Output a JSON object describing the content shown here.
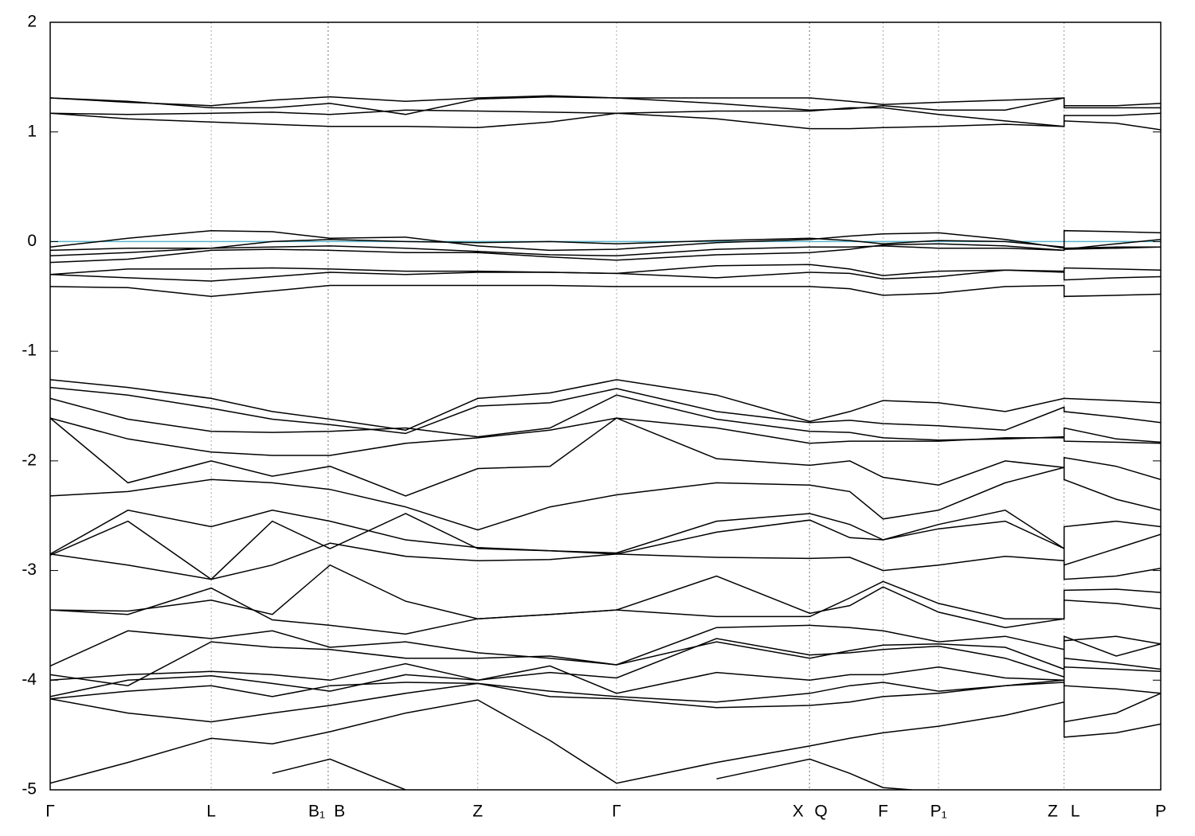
{
  "chart_data": {
    "type": "line",
    "x": [
      0,
      0.07,
      0.145,
      0.2,
      0.252,
      0.32,
      0.385,
      0.45,
      0.51,
      0.6,
      0.684,
      0.72,
      0.75,
      0.8,
      0.86,
      0.913,
      0.913,
      0.96,
      1.0
    ],
    "xlim": [
      0,
      1.0
    ],
    "xticks": [
      {
        "value": 0,
        "label": "Γ"
      },
      {
        "value": 0.145,
        "label": "L"
      },
      {
        "value": 0.25,
        "label": "B₁"
      },
      {
        "value": 0.2505,
        "label": "B"
      },
      {
        "value": 0.385,
        "label": "Z"
      },
      {
        "value": 0.51,
        "label": "Γ"
      },
      {
        "value": 0.6835,
        "label": "X"
      },
      {
        "value": 0.684,
        "label": "Q"
      },
      {
        "value": 0.75,
        "label": "F"
      },
      {
        "value": 0.8,
        "label": "P₁"
      },
      {
        "value": 0.9128,
        "label": "Z"
      },
      {
        "value": 0.913,
        "label": "L"
      },
      {
        "value": 1.0,
        "label": "P"
      }
    ],
    "ylim": [
      -5,
      2
    ],
    "yticks": [
      -5,
      -4,
      -3,
      -2,
      -1,
      0,
      1,
      2
    ],
    "grid": true,
    "line_color": "#000000",
    "fermi_level": 0,
    "fermi_color": "#5ab4c8",
    "series": [
      {
        "values": [
          1.31,
          1.27,
          1.24,
          1.29,
          1.32,
          1.28,
          1.31,
          1.33,
          1.31,
          1.31,
          1.31,
          1.28,
          1.25,
          1.27,
          1.29,
          1.31,
          1.24,
          1.24,
          1.26
        ]
      },
      {
        "values": [
          1.31,
          1.28,
          1.22,
          1.22,
          1.26,
          1.16,
          1.3,
          1.32,
          1.31,
          1.26,
          1.2,
          1.21,
          1.24,
          1.2,
          1.2,
          1.31,
          1.22,
          1.22,
          1.22
        ]
      },
      {
        "values": [
          1.17,
          1.16,
          1.17,
          1.18,
          1.16,
          1.2,
          1.19,
          1.18,
          1.17,
          1.19,
          1.19,
          1.22,
          1.22,
          1.16,
          1.1,
          1.05,
          1.15,
          1.15,
          1.17
        ]
      },
      {
        "values": [
          1.17,
          1.12,
          1.09,
          1.07,
          1.05,
          1.05,
          1.04,
          1.09,
          1.17,
          1.12,
          1.03,
          1.03,
          1.04,
          1.05,
          1.07,
          1.05,
          1.1,
          1.08,
          1.02
        ]
      },
      {
        "values": [
          -0.05,
          0.03,
          0.1,
          0.09,
          0.03,
          0.04,
          -0.04,
          -0.08,
          -0.07,
          -0.01,
          0.02,
          0.05,
          0.07,
          0.08,
          0.02,
          -0.06,
          0.1,
          0.09,
          0.08
        ]
      },
      {
        "values": [
          -0.08,
          -0.06,
          -0.06,
          0.0,
          0.02,
          0.0,
          -0.01,
          0.0,
          -0.02,
          0.01,
          0.03,
          0.01,
          -0.02,
          0.01,
          0.0,
          -0.05,
          -0.07,
          -0.02,
          0.02
        ]
      },
      {
        "values": [
          -0.13,
          -0.1,
          -0.06,
          -0.05,
          -0.04,
          -0.06,
          -0.09,
          -0.12,
          -0.13,
          -0.07,
          -0.05,
          -0.05,
          -0.04,
          -0.06,
          -0.06,
          -0.08,
          -0.06,
          -0.05,
          -0.05
        ]
      },
      {
        "values": [
          -0.19,
          -0.16,
          -0.08,
          -0.07,
          -0.08,
          -0.1,
          -0.1,
          -0.14,
          -0.17,
          -0.12,
          -0.1,
          -0.07,
          -0.03,
          -0.02,
          -0.04,
          -0.08,
          -0.07,
          -0.06,
          -0.05
        ]
      },
      {
        "values": [
          -0.3,
          -0.25,
          -0.25,
          -0.24,
          -0.25,
          -0.27,
          -0.27,
          -0.28,
          -0.29,
          -0.22,
          -0.21,
          -0.25,
          -0.31,
          -0.27,
          -0.26,
          -0.28,
          -0.24,
          -0.25,
          -0.26
        ]
      },
      {
        "values": [
          -0.3,
          -0.33,
          -0.36,
          -0.32,
          -0.28,
          -0.3,
          -0.28,
          -0.28,
          -0.29,
          -0.33,
          -0.28,
          -0.29,
          -0.34,
          -0.32,
          -0.26,
          -0.27,
          -0.35,
          -0.33,
          -0.32
        ]
      },
      {
        "values": [
          -0.41,
          -0.42,
          -0.5,
          -0.45,
          -0.4,
          -0.4,
          -0.4,
          -0.4,
          -0.41,
          -0.41,
          -0.41,
          -0.43,
          -0.49,
          -0.47,
          -0.41,
          -0.4,
          -0.5,
          -0.49,
          -0.48
        ]
      },
      {
        "values": [
          -1.26,
          -1.33,
          -1.43,
          -1.55,
          -1.62,
          -1.72,
          -1.43,
          -1.38,
          -1.26,
          -1.4,
          -1.64,
          -1.55,
          -1.45,
          -1.47,
          -1.55,
          -1.43,
          -1.43,
          -1.45,
          -1.47
        ]
      },
      {
        "values": [
          -1.33,
          -1.4,
          -1.52,
          -1.62,
          -1.67,
          -1.75,
          -1.5,
          -1.47,
          -1.34,
          -1.55,
          -1.65,
          -1.63,
          -1.66,
          -1.68,
          -1.72,
          -1.51,
          -1.55,
          -1.6,
          -1.65
        ]
      },
      {
        "values": [
          -1.43,
          -1.62,
          -1.73,
          -1.74,
          -1.73,
          -1.7,
          -1.78,
          -1.7,
          -1.4,
          -1.62,
          -1.73,
          -1.74,
          -1.79,
          -1.81,
          -1.8,
          -1.78,
          -1.7,
          -1.8,
          -1.83
        ]
      },
      {
        "values": [
          -1.61,
          -1.8,
          -1.92,
          -1.95,
          -1.95,
          -1.84,
          -1.79,
          -1.72,
          -1.61,
          -1.7,
          -1.84,
          -1.82,
          -1.82,
          -1.82,
          -1.79,
          -1.79,
          -1.82,
          -1.83,
          -1.84
        ]
      },
      {
        "values": [
          -1.61,
          -2.2,
          -2.0,
          -2.14,
          -2.05,
          -2.32,
          -2.07,
          -2.05,
          -1.61,
          -1.98,
          -2.04,
          -2.0,
          -2.15,
          -2.22,
          -2.0,
          -2.06,
          -1.97,
          -2.05,
          -2.17
        ]
      },
      {
        "values": [
          -2.32,
          -2.28,
          -2.17,
          -2.2,
          -2.26,
          -2.42,
          -2.63,
          -2.42,
          -2.31,
          -2.2,
          -2.22,
          -2.28,
          -2.53,
          -2.45,
          -2.2,
          -2.06,
          -2.17,
          -2.35,
          -2.45
        ]
      },
      {
        "values": [
          -2.85,
          -2.45,
          -2.6,
          -2.45,
          -2.55,
          -2.72,
          -2.79,
          -2.82,
          -2.84,
          -2.55,
          -2.48,
          -2.58,
          -2.72,
          -2.58,
          -2.45,
          -2.8,
          -2.6,
          -2.55,
          -2.6
        ]
      },
      {
        "values": [
          -2.86,
          -2.55,
          -3.08,
          -2.55,
          -2.8,
          -2.48,
          -2.8,
          -2.82,
          -2.85,
          -2.65,
          -2.54,
          -2.7,
          -2.72,
          -2.62,
          -2.55,
          -2.8,
          -2.95,
          -2.8,
          -2.67
        ]
      },
      {
        "values": [
          -2.85,
          -2.95,
          -3.08,
          -2.95,
          -2.75,
          -2.87,
          -2.91,
          -2.9,
          -2.85,
          -2.88,
          -2.89,
          -2.88,
          -3.0,
          -2.95,
          -2.87,
          -2.91,
          -3.08,
          -3.05,
          -2.98
        ]
      },
      {
        "values": [
          -3.36,
          -3.37,
          -3.27,
          -3.4,
          -2.95,
          -3.28,
          -3.44,
          -3.4,
          -3.36,
          -3.42,
          -3.42,
          -3.25,
          -3.1,
          -3.3,
          -3.44,
          -3.44,
          -3.18,
          -3.17,
          -3.2
        ]
      },
      {
        "values": [
          -3.36,
          -3.4,
          -3.16,
          -3.45,
          -3.5,
          -3.58,
          -3.44,
          -3.4,
          -3.36,
          -3.05,
          -3.39,
          -3.32,
          -3.15,
          -3.38,
          -3.52,
          -3.44,
          -3.27,
          -3.3,
          -3.35
        ]
      },
      {
        "values": [
          -3.87,
          -3.55,
          -3.62,
          -3.55,
          -3.7,
          -3.65,
          -3.75,
          -3.8,
          -3.86,
          -3.52,
          -3.5,
          -3.52,
          -3.55,
          -3.65,
          -3.6,
          -3.72,
          -3.64,
          -3.6,
          -3.67
        ]
      },
      {
        "values": [
          -3.95,
          -4.05,
          -3.65,
          -3.7,
          -3.72,
          -3.8,
          -3.8,
          -3.78,
          -3.86,
          -3.65,
          -3.8,
          -3.73,
          -3.68,
          -3.67,
          -3.7,
          -3.9,
          -3.6,
          -3.78,
          -3.67
        ]
      },
      {
        "values": [
          -4.0,
          -3.95,
          -3.92,
          -3.95,
          -4.0,
          -3.85,
          -4.0,
          -3.93,
          -3.98,
          -3.62,
          -3.77,
          -3.75,
          -3.72,
          -3.69,
          -3.8,
          -3.97,
          -3.8,
          -3.85,
          -3.9
        ]
      },
      {
        "values": [
          -4.15,
          -4.0,
          -3.96,
          -4.03,
          -4.1,
          -3.95,
          -4.0,
          -3.87,
          -4.12,
          -3.93,
          -4.0,
          -3.95,
          -3.95,
          -3.88,
          -3.98,
          -4.0,
          -3.88,
          -3.9,
          -3.92
        ]
      },
      {
        "values": [
          -4.17,
          -4.1,
          -4.05,
          -4.15,
          -4.05,
          -4.02,
          -4.03,
          -4.1,
          -4.15,
          -4.2,
          -4.12,
          -4.05,
          -4.02,
          -4.1,
          -4.05,
          -4.02,
          -4.05,
          -4.08,
          -4.12
        ]
      },
      {
        "values": [
          -4.17,
          -4.3,
          -4.38,
          -4.3,
          -4.23,
          -4.12,
          -4.03,
          -4.15,
          -4.17,
          -4.25,
          -4.23,
          -4.2,
          -4.15,
          -4.12,
          -4.05,
          -4.0,
          -4.38,
          -4.3,
          -4.12
        ]
      },
      {
        "values": [
          -4.94,
          -4.75,
          -4.53,
          -4.58,
          -4.47,
          -4.3,
          -4.18,
          -4.55,
          -4.94,
          -4.75,
          -4.6,
          -4.53,
          -4.48,
          -4.42,
          -4.32,
          -4.2,
          -4.52,
          -4.48,
          -4.4
        ]
      },
      {
        "values": [
          null,
          null,
          null,
          -4.85,
          -4.72,
          -5.0,
          null,
          null,
          null,
          -4.9,
          -4.72,
          -4.85,
          -4.98,
          -5.02,
          null,
          null,
          null,
          null,
          null
        ]
      }
    ]
  }
}
